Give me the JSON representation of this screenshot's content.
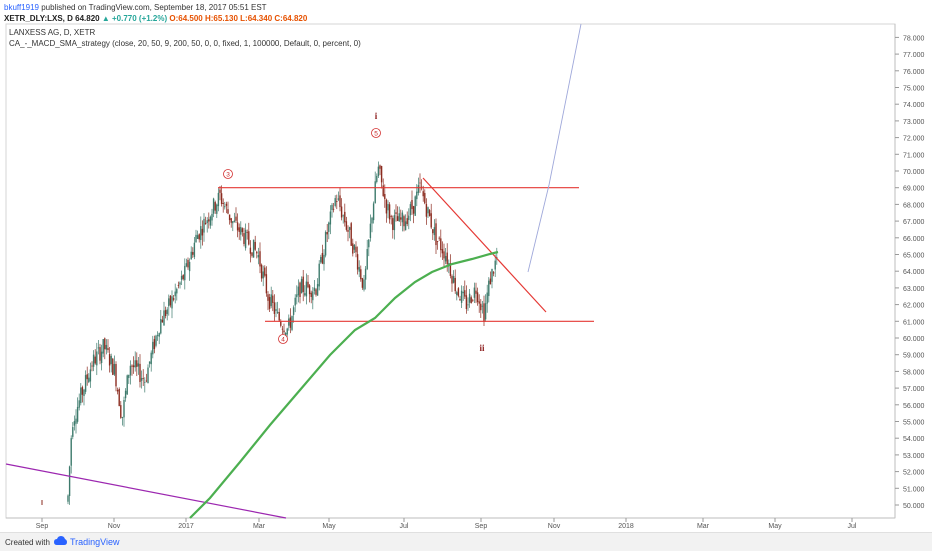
{
  "header": {
    "user": "bkuff1919",
    "published_text": "published on TradingView.com, September 18, 2017 05:51 EST"
  },
  "quote": {
    "symbol": "XETR_DLY:LXS, D",
    "last": "64.820",
    "change": "+0.770 (+1.2%)",
    "open_label": "O:",
    "open": "64.500",
    "high_label": "H:",
    "high": "65.130",
    "low_label": "L:",
    "low": "64.340",
    "close_label": "C:",
    "close": "64.820"
  },
  "chart_data": {
    "type": "candlestick",
    "title": "LANXESS AG, D, XETR",
    "subtitle": "CA_-_MACD_SMA_strategy (close, 20, 50, 9, 200, 50, 0, 0, fixed, 1, 100000, Default, 0, percent, 0)",
    "ylim": [
      49.5,
      78.4
    ],
    "y_ticks": [
      "50.000",
      "51.000",
      "52.000",
      "53.000",
      "54.000",
      "55.000",
      "56.000",
      "57.000",
      "58.000",
      "59.000",
      "60.000",
      "61.000",
      "62.000",
      "63.000",
      "64.000",
      "65.000",
      "66.000",
      "67.000",
      "68.000",
      "69.000",
      "70.000",
      "71.000",
      "72.000",
      "73.000",
      "74.000",
      "75.000",
      "76.000",
      "77.000",
      "78.000"
    ],
    "x_ticks": [
      "Sep",
      "Nov",
      "2017",
      "Mar",
      "May",
      "Jul",
      "Sep",
      "Nov",
      "2018",
      "Mar",
      "May",
      "Jul"
    ],
    "price_series": [
      {
        "month": "Sep",
        "price": 50.0
      },
      {
        "month": "Oct",
        "price": 57.0
      },
      {
        "month": "Nov",
        "price": 59.5
      },
      {
        "month": "Dec",
        "price": 57.0
      },
      {
        "month": "Jan",
        "price": 63.0
      },
      {
        "month": "Feb",
        "price": 68.5
      },
      {
        "month": "Mar",
        "price": 63.0
      },
      {
        "month": "Apr",
        "price": 62.5
      },
      {
        "month": "May",
        "price": 68.0
      },
      {
        "month": "Jun",
        "price": 69.5
      },
      {
        "month": "Jul",
        "price": 67.5
      },
      {
        "month": "Aug",
        "price": 64.0
      },
      {
        "month": "Sep",
        "price": 64.82
      }
    ],
    "sma_line_color": "#4caf50",
    "support_level": 61.0,
    "resistance_level": 69.0,
    "wave_labels": [
      "3",
      "4",
      "5",
      "i",
      "ii"
    ],
    "colors": {
      "up": "#3d7a6c",
      "down": "#8b2b1f",
      "lines": "#e53935",
      "trend": "#9c27b0",
      "projection": "#9fa8da"
    }
  },
  "footer": {
    "created_with": "Created with",
    "brand": "TradingView"
  }
}
